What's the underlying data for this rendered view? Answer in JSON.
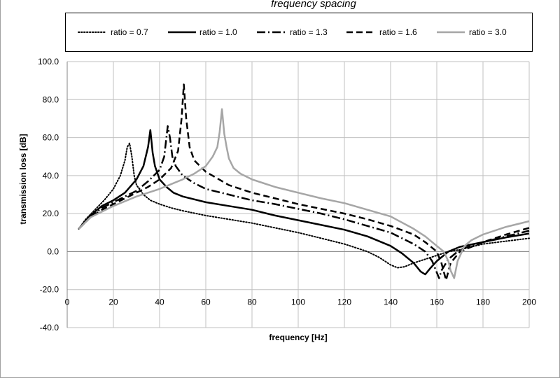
{
  "chart_data": {
    "type": "line",
    "title": "frequency spacing",
    "xlabel": "frequency [Hz]",
    "ylabel": "transmission loss [dB]",
    "xlim": [
      0,
      200
    ],
    "ylim": [
      -40,
      100
    ],
    "x_ticks": [
      "0",
      "20",
      "40",
      "60",
      "80",
      "100",
      "120",
      "140",
      "160",
      "180",
      "200"
    ],
    "y_ticks": [
      "-40.0",
      "-20.0",
      "0.0",
      "20.0",
      "40.0",
      "60.0",
      "80.0",
      "100.0"
    ],
    "grid": true,
    "legend_position": "top",
    "series": [
      {
        "name": "ratio = 0.7",
        "color": "#000000",
        "dash": "dotted",
        "x": [
          5,
          8,
          12,
          16,
          20,
          23,
          25,
          26,
          27,
          28,
          29,
          30,
          33,
          36,
          40,
          45,
          50,
          60,
          70,
          80,
          90,
          100,
          110,
          120,
          130,
          135,
          140,
          143,
          146,
          150,
          155,
          160,
          165,
          170,
          175,
          180,
          190,
          200
        ],
        "y": [
          12,
          17,
          22,
          27,
          33,
          40,
          48,
          55,
          57,
          50,
          40,
          35,
          30,
          27,
          25,
          23,
          21.5,
          19,
          17,
          15,
          12.5,
          10,
          7,
          4,
          0,
          -3,
          -7,
          -8.5,
          -8,
          -6,
          -4,
          -2,
          0,
          1,
          2.5,
          4,
          5.5,
          7
        ]
      },
      {
        "name": "ratio = 1.0",
        "color": "#000000",
        "dash": "solid",
        "x": [
          5,
          10,
          15,
          20,
          25,
          30,
          33,
          35,
          36,
          37,
          38,
          40,
          43,
          46,
          50,
          60,
          70,
          80,
          90,
          100,
          110,
          120,
          130,
          140,
          145,
          150,
          153,
          155,
          157,
          160,
          165,
          170,
          180,
          190,
          200
        ],
        "y": [
          12,
          19,
          24,
          27,
          31,
          38,
          45,
          55,
          64,
          52,
          45,
          38,
          34,
          31,
          29,
          26,
          24,
          22,
          19,
          16.5,
          14,
          11.5,
          8,
          3,
          -1,
          -6,
          -10.5,
          -12,
          -9,
          -5,
          0,
          2.5,
          5,
          7.5,
          9.5
        ]
      },
      {
        "name": "ratio = 1.3",
        "color": "#000000",
        "dash": "dashdot",
        "x": [
          5,
          10,
          15,
          20,
          25,
          30,
          35,
          40,
          42,
          43.5,
          44.5,
          45.5,
          47,
          50,
          55,
          60,
          70,
          80,
          90,
          100,
          110,
          120,
          130,
          140,
          150,
          155,
          158,
          160,
          161,
          162,
          165,
          170,
          180,
          190,
          200
        ],
        "y": [
          12,
          18,
          23,
          26,
          29,
          32,
          37,
          43,
          50,
          66,
          60,
          50,
          45,
          40,
          36,
          33,
          30,
          27,
          25,
          22.5,
          20,
          17,
          13.5,
          10,
          4,
          0,
          -5,
          -11,
          -14,
          -10,
          -4,
          1,
          5,
          8,
          11
        ]
      },
      {
        "name": "ratio = 1.6",
        "color": "#000000",
        "dash": "dashed",
        "x": [
          5,
          10,
          15,
          20,
          25,
          30,
          35,
          40,
          45,
          48,
          49.5,
          50.5,
          51.5,
          53,
          55,
          60,
          70,
          80,
          90,
          100,
          110,
          120,
          130,
          140,
          150,
          155,
          160,
          162,
          164,
          166,
          170,
          180,
          190,
          200
        ],
        "y": [
          12,
          18,
          22,
          25,
          28,
          31,
          34,
          38,
          44,
          53,
          70,
          88,
          70,
          55,
          48,
          42,
          35,
          31,
          28,
          25,
          22.5,
          20,
          17,
          13.5,
          9,
          5,
          0,
          -6,
          -15,
          -6,
          0,
          5,
          9,
          12.5
        ]
      },
      {
        "name": "ratio = 3.0",
        "color": "#a6a6a6",
        "dash": "solid",
        "x": [
          5,
          10,
          20,
          30,
          40,
          50,
          55,
          60,
          63,
          65,
          66,
          67,
          68,
          69,
          70,
          72,
          75,
          80,
          90,
          100,
          110,
          120,
          130,
          140,
          150,
          155,
          160,
          163,
          165,
          166,
          167.5,
          169,
          172,
          175,
          180,
          190,
          200
        ],
        "y": [
          12,
          18,
          24,
          29,
          33,
          38,
          41,
          45,
          50,
          55,
          63,
          75,
          62,
          55,
          49,
          44,
          41,
          38,
          34,
          31,
          28,
          25.5,
          22,
          18.5,
          12,
          8,
          3,
          0,
          -5,
          -10,
          -14,
          -5,
          3,
          6,
          9,
          13,
          16
        ]
      }
    ]
  }
}
